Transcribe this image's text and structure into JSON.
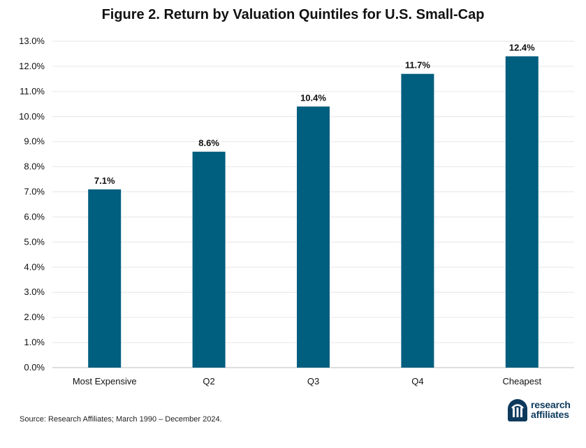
{
  "chart_data": {
    "type": "bar",
    "title": "Figure 2. Return by Valuation Quintiles for U.S. Small-Cap",
    "categories": [
      "Most Expensive",
      "Q2",
      "Q3",
      "Q4",
      "Cheapest"
    ],
    "values": [
      7.1,
      8.6,
      10.4,
      11.7,
      12.4
    ],
    "data_labels": [
      "7.1%",
      "8.6%",
      "10.4%",
      "11.7%",
      "12.4%"
    ],
    "y_ticks": [
      0,
      1,
      2,
      3,
      4,
      5,
      6,
      7,
      8,
      9,
      10,
      11,
      12,
      13
    ],
    "y_tick_labels": [
      "0.0%",
      "1.0%",
      "2.0%",
      "3.0%",
      "4.0%",
      "5.0%",
      "6.0%",
      "7.0%",
      "8.0%",
      "9.0%",
      "10.0%",
      "11.0%",
      "12.0%",
      "13.0%"
    ],
    "ylim": [
      0,
      13
    ],
    "grid": true,
    "bar_color": "#005e7e",
    "grid_color": "#e6e6e6"
  },
  "source": "Source: Research Affiliates; March 1990 – December 2024.",
  "brand": {
    "name_line1": "research",
    "name_line2": "affiliates",
    "logo_icon": "research-affiliates-logo-icon",
    "color": "#0d3a5c"
  }
}
